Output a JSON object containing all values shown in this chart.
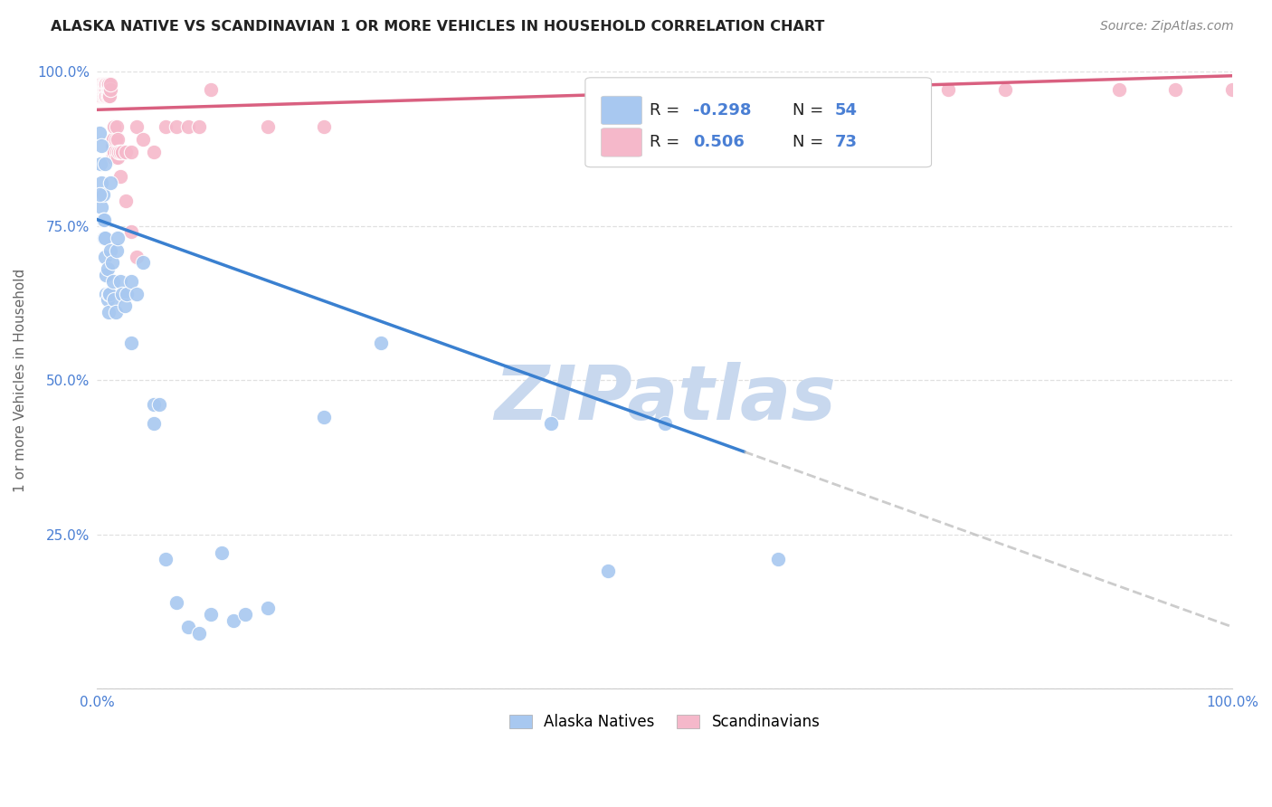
{
  "title": "ALASKA NATIVE VS SCANDINAVIAN 1 OR MORE VEHICLES IN HOUSEHOLD CORRELATION CHART",
  "source": "Source: ZipAtlas.com",
  "ylabel": "1 or more Vehicles in Household",
  "legend_label1": "Alaska Natives",
  "legend_label2": "Scandinavians",
  "R_blue": -0.298,
  "N_blue": 54,
  "R_pink": 0.506,
  "N_pink": 73,
  "color_blue": "#a8c8f0",
  "color_pink": "#f5b8ca",
  "line_blue": "#3a80d0",
  "line_pink": "#d96080",
  "line_dash": "#bbbbbb",
  "background_color": "#ffffff",
  "grid_color": "#dddddd",
  "watermark_color": "#c8d8ee",
  "axis_label_color": "#4a7fd4",
  "ylabel_color": "#666666",
  "title_color": "#222222",
  "source_color": "#888888",
  "blue_x": [
    0.002,
    0.003,
    0.004,
    0.004,
    0.005,
    0.005,
    0.006,
    0.006,
    0.007,
    0.007,
    0.008,
    0.008,
    0.009,
    0.009,
    0.01,
    0.01,
    0.011,
    0.012,
    0.013,
    0.014,
    0.015,
    0.016,
    0.017,
    0.018,
    0.02,
    0.022,
    0.024,
    0.026,
    0.03,
    0.035,
    0.04,
    0.05,
    0.055,
    0.06,
    0.07,
    0.08,
    0.09,
    0.1,
    0.11,
    0.12,
    0.13,
    0.15,
    0.2,
    0.25,
    0.4,
    0.45,
    0.5,
    0.6,
    0.002,
    0.004,
    0.007,
    0.012,
    0.03,
    0.05
  ],
  "blue_y": [
    0.9,
    0.85,
    0.82,
    0.78,
    0.76,
    0.8,
    0.73,
    0.76,
    0.7,
    0.73,
    0.67,
    0.64,
    0.68,
    0.63,
    0.61,
    0.64,
    0.64,
    0.71,
    0.69,
    0.66,
    0.63,
    0.61,
    0.71,
    0.73,
    0.66,
    0.64,
    0.62,
    0.64,
    0.66,
    0.64,
    0.69,
    0.46,
    0.46,
    0.21,
    0.14,
    0.1,
    0.09,
    0.12,
    0.22,
    0.11,
    0.12,
    0.13,
    0.44,
    0.56,
    0.43,
    0.19,
    0.43,
    0.21,
    0.8,
    0.88,
    0.85,
    0.82,
    0.56,
    0.43
  ],
  "pink_x": [
    0.001,
    0.002,
    0.002,
    0.003,
    0.003,
    0.003,
    0.004,
    0.004,
    0.004,
    0.005,
    0.005,
    0.005,
    0.006,
    0.006,
    0.006,
    0.006,
    0.007,
    0.007,
    0.007,
    0.007,
    0.008,
    0.008,
    0.008,
    0.008,
    0.009,
    0.009,
    0.009,
    0.01,
    0.01,
    0.01,
    0.011,
    0.011,
    0.012,
    0.012,
    0.013,
    0.013,
    0.014,
    0.014,
    0.015,
    0.015,
    0.016,
    0.016,
    0.017,
    0.017,
    0.018,
    0.018,
    0.019,
    0.02,
    0.022,
    0.025,
    0.03,
    0.035,
    0.04,
    0.05,
    0.06,
    0.07,
    0.08,
    0.09,
    0.1,
    0.15,
    0.2,
    0.5,
    0.65,
    0.7,
    0.75,
    0.8,
    0.9,
    0.95,
    1.0,
    0.02,
    0.025,
    0.03,
    0.035
  ],
  "pink_y": [
    0.96,
    0.96,
    0.97,
    0.97,
    0.96,
    0.98,
    0.97,
    0.98,
    0.96,
    0.97,
    0.98,
    0.96,
    0.97,
    0.98,
    0.96,
    0.97,
    0.98,
    0.97,
    0.96,
    0.98,
    0.97,
    0.96,
    0.98,
    0.96,
    0.97,
    0.98,
    0.96,
    0.97,
    0.96,
    0.98,
    0.97,
    0.96,
    0.97,
    0.98,
    0.88,
    0.86,
    0.86,
    0.89,
    0.87,
    0.91,
    0.86,
    0.89,
    0.87,
    0.91,
    0.86,
    0.89,
    0.87,
    0.87,
    0.87,
    0.87,
    0.87,
    0.91,
    0.89,
    0.87,
    0.91,
    0.91,
    0.91,
    0.91,
    0.97,
    0.91,
    0.91,
    0.97,
    0.97,
    0.97,
    0.97,
    0.97,
    0.97,
    0.97,
    0.97,
    0.83,
    0.79,
    0.74,
    0.7
  ]
}
